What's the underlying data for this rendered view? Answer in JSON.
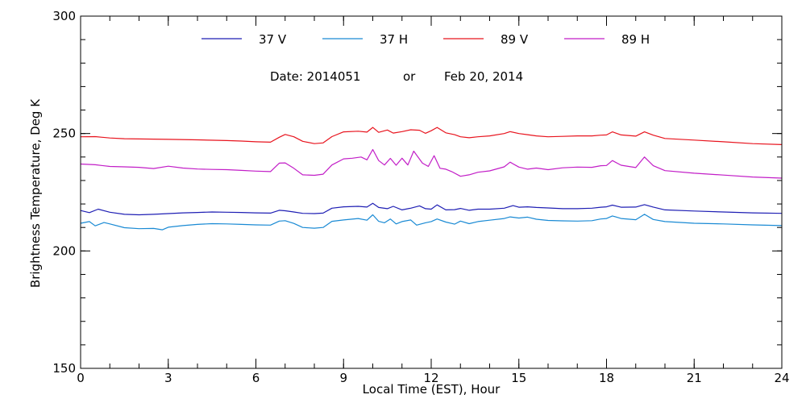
{
  "chart_data": {
    "type": "line",
    "xlabel": "Local Time (EST), Hour",
    "ylabel": "Brightness Temperature, Deg K",
    "xlim": [
      0,
      24
    ],
    "ylim": [
      150,
      300
    ],
    "x_ticks": [
      0,
      3,
      6,
      9,
      12,
      15,
      18,
      21,
      24
    ],
    "y_ticks": [
      150,
      200,
      250,
      300
    ],
    "x_minor_step": 1,
    "y_minor_step": 10,
    "grid": false,
    "legend_position": "top",
    "annotation": {
      "date_label": "Date: 2014051",
      "or_label": "or",
      "date_text": "Feb 20, 2014"
    },
    "series": [
      {
        "name": "37 V",
        "color": "#1f1fb4",
        "points": [
          [
            0,
            217.2
          ],
          [
            0.3,
            216.3
          ],
          [
            0.6,
            217.8
          ],
          [
            1,
            216.5
          ],
          [
            1.5,
            215.6
          ],
          [
            2,
            215.4
          ],
          [
            2.5,
            215.6
          ],
          [
            3,
            215.9
          ],
          [
            3.5,
            216.2
          ],
          [
            4,
            216.4
          ],
          [
            4.5,
            216.6
          ],
          [
            5,
            216.5
          ],
          [
            5.5,
            216.4
          ],
          [
            6,
            216.2
          ],
          [
            6.5,
            216.1
          ],
          [
            6.8,
            217.3
          ],
          [
            7,
            217.1
          ],
          [
            7.3,
            216.6
          ],
          [
            7.6,
            216
          ],
          [
            8,
            215.9
          ],
          [
            8.3,
            216.1
          ],
          [
            8.6,
            218.2
          ],
          [
            9,
            218.8
          ],
          [
            9.5,
            219
          ],
          [
            9.8,
            218.7
          ],
          [
            10,
            220.3
          ],
          [
            10.2,
            218.5
          ],
          [
            10.5,
            218
          ],
          [
            10.7,
            219
          ],
          [
            11,
            217.5
          ],
          [
            11.3,
            218.2
          ],
          [
            11.6,
            219.2
          ],
          [
            11.8,
            218
          ],
          [
            12,
            217.8
          ],
          [
            12.2,
            219.6
          ],
          [
            12.5,
            217.5
          ],
          [
            12.8,
            217.6
          ],
          [
            13,
            218.1
          ],
          [
            13.3,
            217.3
          ],
          [
            13.6,
            217.8
          ],
          [
            14,
            217.8
          ],
          [
            14.5,
            218.2
          ],
          [
            14.8,
            219.3
          ],
          [
            15,
            218.6
          ],
          [
            15.3,
            218.8
          ],
          [
            15.6,
            218.5
          ],
          [
            16,
            218.3
          ],
          [
            16.5,
            218
          ],
          [
            17,
            218
          ],
          [
            17.5,
            218.2
          ],
          [
            17.8,
            218.6
          ],
          [
            18,
            218.8
          ],
          [
            18.2,
            219.5
          ],
          [
            18.5,
            218.6
          ],
          [
            19,
            218.7
          ],
          [
            19.3,
            219.7
          ],
          [
            19.6,
            218.7
          ],
          [
            20,
            217.5
          ],
          [
            21,
            217
          ],
          [
            22,
            216.6
          ],
          [
            23,
            216.2
          ],
          [
            24,
            216
          ]
        ]
      },
      {
        "name": "37 H",
        "color": "#1a8ad4",
        "points": [
          [
            0,
            211.8
          ],
          [
            0.3,
            212.5
          ],
          [
            0.5,
            210.7
          ],
          [
            0.8,
            212.1
          ],
          [
            1,
            211.5
          ],
          [
            1.5,
            209.9
          ],
          [
            2,
            209.5
          ],
          [
            2.5,
            209.6
          ],
          [
            2.8,
            209
          ],
          [
            3,
            210.1
          ],
          [
            3.5,
            210.8
          ],
          [
            4,
            211.3
          ],
          [
            4.5,
            211.6
          ],
          [
            5,
            211.5
          ],
          [
            5.5,
            211.3
          ],
          [
            6,
            211.1
          ],
          [
            6.5,
            211
          ],
          [
            6.8,
            212.7
          ],
          [
            7,
            212.9
          ],
          [
            7.3,
            211.7
          ],
          [
            7.6,
            210
          ],
          [
            8,
            209.7
          ],
          [
            8.3,
            210
          ],
          [
            8.6,
            212.6
          ],
          [
            9,
            213.2
          ],
          [
            9.5,
            213.8
          ],
          [
            9.8,
            213.1
          ],
          [
            10,
            215.4
          ],
          [
            10.2,
            212.6
          ],
          [
            10.4,
            212
          ],
          [
            10.6,
            213.6
          ],
          [
            10.8,
            211.5
          ],
          [
            11,
            212.5
          ],
          [
            11.3,
            213.2
          ],
          [
            11.5,
            211
          ],
          [
            11.8,
            212
          ],
          [
            12,
            212.5
          ],
          [
            12.2,
            213.6
          ],
          [
            12.5,
            212.3
          ],
          [
            12.8,
            211.4
          ],
          [
            13,
            212.7
          ],
          [
            13.3,
            211.6
          ],
          [
            13.6,
            212.5
          ],
          [
            14,
            213.1
          ],
          [
            14.5,
            213.8
          ],
          [
            14.7,
            214.5
          ],
          [
            15,
            214
          ],
          [
            15.3,
            214.4
          ],
          [
            15.6,
            213.5
          ],
          [
            16,
            213
          ],
          [
            16.5,
            212.8
          ],
          [
            17,
            212.7
          ],
          [
            17.5,
            212.9
          ],
          [
            17.8,
            213.6
          ],
          [
            18,
            213.8
          ],
          [
            18.2,
            214.9
          ],
          [
            18.5,
            213.8
          ],
          [
            19,
            213.3
          ],
          [
            19.3,
            215.6
          ],
          [
            19.6,
            213.4
          ],
          [
            20,
            212.5
          ],
          [
            21,
            211.8
          ],
          [
            22,
            211.5
          ],
          [
            23,
            211.1
          ],
          [
            24,
            210.8
          ]
        ]
      },
      {
        "name": "89 V",
        "color": "#e8141e",
        "points": [
          [
            0,
            248.6
          ],
          [
            0.5,
            248.7
          ],
          [
            1,
            248.1
          ],
          [
            1.5,
            247.8
          ],
          [
            2,
            247.7
          ],
          [
            3,
            247.5
          ],
          [
            4,
            247.3
          ],
          [
            5,
            247
          ],
          [
            5.5,
            246.8
          ],
          [
            6,
            246.5
          ],
          [
            6.5,
            246.3
          ],
          [
            6.8,
            248.4
          ],
          [
            7,
            249.6
          ],
          [
            7.3,
            248.6
          ],
          [
            7.6,
            246.7
          ],
          [
            8,
            245.7
          ],
          [
            8.3,
            246
          ],
          [
            8.6,
            248.7
          ],
          [
            9,
            250.7
          ],
          [
            9.5,
            251
          ],
          [
            9.8,
            250.6
          ],
          [
            10,
            252.6
          ],
          [
            10.2,
            250.5
          ],
          [
            10.5,
            251.5
          ],
          [
            10.7,
            250.2
          ],
          [
            11,
            250.8
          ],
          [
            11.3,
            251.6
          ],
          [
            11.6,
            251.4
          ],
          [
            11.8,
            250.1
          ],
          [
            12,
            251.2
          ],
          [
            12.2,
            252.6
          ],
          [
            12.5,
            250.3
          ],
          [
            12.8,
            249.5
          ],
          [
            13,
            248.6
          ],
          [
            13.3,
            248.2
          ],
          [
            13.6,
            248.6
          ],
          [
            14,
            249
          ],
          [
            14.5,
            250
          ],
          [
            14.7,
            250.8
          ],
          [
            15,
            250
          ],
          [
            15.3,
            249.5
          ],
          [
            15.6,
            249
          ],
          [
            16,
            248.6
          ],
          [
            16.5,
            248.8
          ],
          [
            17,
            249
          ],
          [
            17.5,
            249
          ],
          [
            17.8,
            249.3
          ],
          [
            18,
            249.4
          ],
          [
            18.2,
            250.7
          ],
          [
            18.5,
            249.4
          ],
          [
            19,
            248.9
          ],
          [
            19.3,
            250.7
          ],
          [
            19.6,
            249.3
          ],
          [
            20,
            247.9
          ],
          [
            21,
            247.2
          ],
          [
            22,
            246.5
          ],
          [
            23,
            245.7
          ],
          [
            24,
            245.3
          ]
        ]
      },
      {
        "name": "89 H",
        "color": "#c21ec7",
        "points": [
          [
            0,
            237
          ],
          [
            0.5,
            236.7
          ],
          [
            1,
            236
          ],
          [
            1.5,
            235.8
          ],
          [
            2,
            235.6
          ],
          [
            2.5,
            235.1
          ],
          [
            3,
            236.1
          ],
          [
            3.5,
            235.3
          ],
          [
            4,
            234.9
          ],
          [
            4.5,
            234.7
          ],
          [
            5,
            234.6
          ],
          [
            5.5,
            234.3
          ],
          [
            6,
            234
          ],
          [
            6.5,
            233.8
          ],
          [
            6.8,
            237.4
          ],
          [
            7,
            237.5
          ],
          [
            7.3,
            235.2
          ],
          [
            7.6,
            232.4
          ],
          [
            8,
            232.2
          ],
          [
            8.3,
            232.7
          ],
          [
            8.6,
            236.6
          ],
          [
            9,
            239.2
          ],
          [
            9.3,
            239.5
          ],
          [
            9.6,
            240
          ],
          [
            9.8,
            238.8
          ],
          [
            10,
            243.2
          ],
          [
            10.2,
            238.5
          ],
          [
            10.4,
            236.6
          ],
          [
            10.6,
            239.4
          ],
          [
            10.8,
            236.5
          ],
          [
            11,
            239.5
          ],
          [
            11.2,
            236.6
          ],
          [
            11.4,
            242.5
          ],
          [
            11.7,
            237.4
          ],
          [
            11.9,
            236
          ],
          [
            12.1,
            240.6
          ],
          [
            12.3,
            235.2
          ],
          [
            12.5,
            234.8
          ],
          [
            12.7,
            233.8
          ],
          [
            13,
            231.8
          ],
          [
            13.3,
            232.4
          ],
          [
            13.6,
            233.5
          ],
          [
            14,
            234.1
          ],
          [
            14.5,
            235.8
          ],
          [
            14.7,
            237.8
          ],
          [
            15,
            235.7
          ],
          [
            15.3,
            234.8
          ],
          [
            15.6,
            235.3
          ],
          [
            16,
            234.6
          ],
          [
            16.5,
            235.4
          ],
          [
            17,
            235.7
          ],
          [
            17.5,
            235.6
          ],
          [
            17.8,
            236.3
          ],
          [
            18,
            236.4
          ],
          [
            18.2,
            238.5
          ],
          [
            18.5,
            236.5
          ],
          [
            19,
            235.5
          ],
          [
            19.3,
            240
          ],
          [
            19.6,
            236.3
          ],
          [
            20,
            234.2
          ],
          [
            21,
            233.1
          ],
          [
            22,
            232.3
          ],
          [
            23,
            231.5
          ],
          [
            24,
            231
          ]
        ]
      }
    ]
  }
}
